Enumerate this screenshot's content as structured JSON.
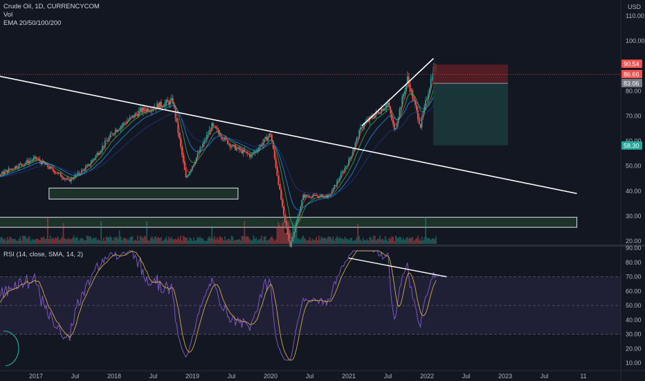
{
  "header": {
    "symbol_line": "Crude Oil, 1D, CURRENCYCOM",
    "vol_label": "Vol",
    "ema_label": "EMA 20/50/100/200",
    "currency": "USD"
  },
  "rsi_header": "RSI (14, close, SMA, 14, 2)",
  "colors": {
    "background": "#131722",
    "up": "#26a69a",
    "down": "#ef5350",
    "rsi_line": "#7e57c2",
    "rsi_sma": "#f5c542",
    "stop_zone": "#5c1f26",
    "target_zone": "#1b3b3b"
  },
  "chart_data": [
    {
      "type": "candlestick",
      "ylim": [
        18,
        112
      ],
      "y_ticks": [
        "110.00",
        "100.00",
        "90.00",
        "80.00",
        "70.00",
        "60.00",
        "50.00",
        "40.00",
        "30.00",
        "20.00"
      ],
      "x_ticks": [
        "2017",
        "Jul",
        "2018",
        "Jul",
        "2019",
        "Jul",
        "2020",
        "Jul",
        "2021",
        "Jul",
        "2022",
        "Jul",
        "2023",
        "Jul",
        "11"
      ],
      "price_path": [
        [
          "2016-01",
          45
        ],
        [
          "2016-07",
          46
        ],
        [
          "2016-10",
          50
        ],
        [
          "2017-01",
          53
        ],
        [
          "2017-06",
          44
        ],
        [
          "2017-09",
          50
        ],
        [
          "2018-01",
          64
        ],
        [
          "2018-05",
          72
        ],
        [
          "2018-10",
          76
        ],
        [
          "2018-12",
          45
        ],
        [
          "2019-04",
          66
        ],
        [
          "2019-07",
          58
        ],
        [
          "2019-10",
          54
        ],
        [
          "2020-01",
          63
        ],
        [
          "2020-03",
          30
        ],
        [
          "2020-04",
          18
        ],
        [
          "2020-06",
          38
        ],
        [
          "2020-10",
          38
        ],
        [
          "2021-01",
          52
        ],
        [
          "2021-03",
          66
        ],
        [
          "2021-07",
          75
        ],
        [
          "2021-08",
          64
        ],
        [
          "2021-10",
          85
        ],
        [
          "2021-12",
          66
        ],
        [
          "2022-02",
          89
        ]
      ],
      "trendlines": [
        {
          "from": [
            "2015-06",
            93
          ],
          "to": [
            "2023-12",
            39
          ]
        },
        {
          "from": [
            "2021-03",
            66
          ],
          "to": [
            "2022-02",
            93
          ]
        }
      ],
      "zones": [
        {
          "from": 36.8,
          "to": 41.2,
          "start": "2017-03",
          "end": "2019-08"
        },
        {
          "from": 25.5,
          "to": 29.5,
          "start": "2015-06",
          "end": "2023-12"
        }
      ],
      "position": {
        "entry": 83.06,
        "stop": 90.54,
        "target": 58.3,
        "current": 86.66
      },
      "price_tags": [
        "90.54",
        "86.66",
        "83.06",
        "58.30"
      ]
    },
    {
      "type": "line",
      "name": "RSI",
      "ylim": [
        5,
        90
      ],
      "y_ticks": [
        "90.00",
        "80.00",
        "70.00",
        "60.00",
        "50.00",
        "40.00",
        "30.00",
        "20.00",
        "10.00"
      ],
      "bands": [
        30,
        50,
        70
      ],
      "trendline": {
        "from": [
          "2021-01",
          83
        ],
        "to": [
          "2022-04",
          70
        ]
      }
    }
  ]
}
